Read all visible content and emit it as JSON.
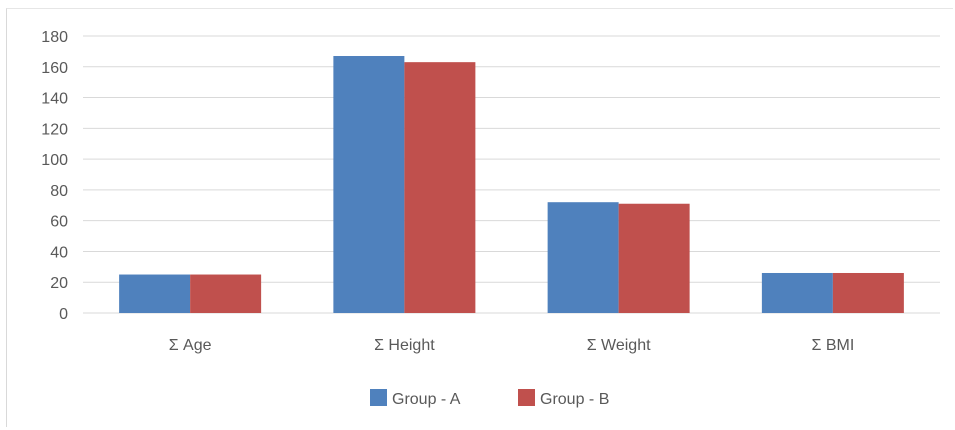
{
  "chart_data": {
    "type": "bar",
    "categories": [
      "Σ Age",
      "Σ Height",
      "Σ Weight",
      "Σ BMI"
    ],
    "series": [
      {
        "name": "Group - A",
        "values": [
          25,
          167,
          72,
          26
        ],
        "color": "#4f81bd"
      },
      {
        "name": "Group - B",
        "values": [
          25,
          163,
          71,
          26
        ],
        "color": "#c0504d"
      }
    ],
    "ylim": [
      0,
      180
    ],
    "yticks": [
      0,
      20,
      40,
      60,
      80,
      100,
      120,
      140,
      160,
      180
    ],
    "grid": true,
    "legend_position": "bottom"
  }
}
